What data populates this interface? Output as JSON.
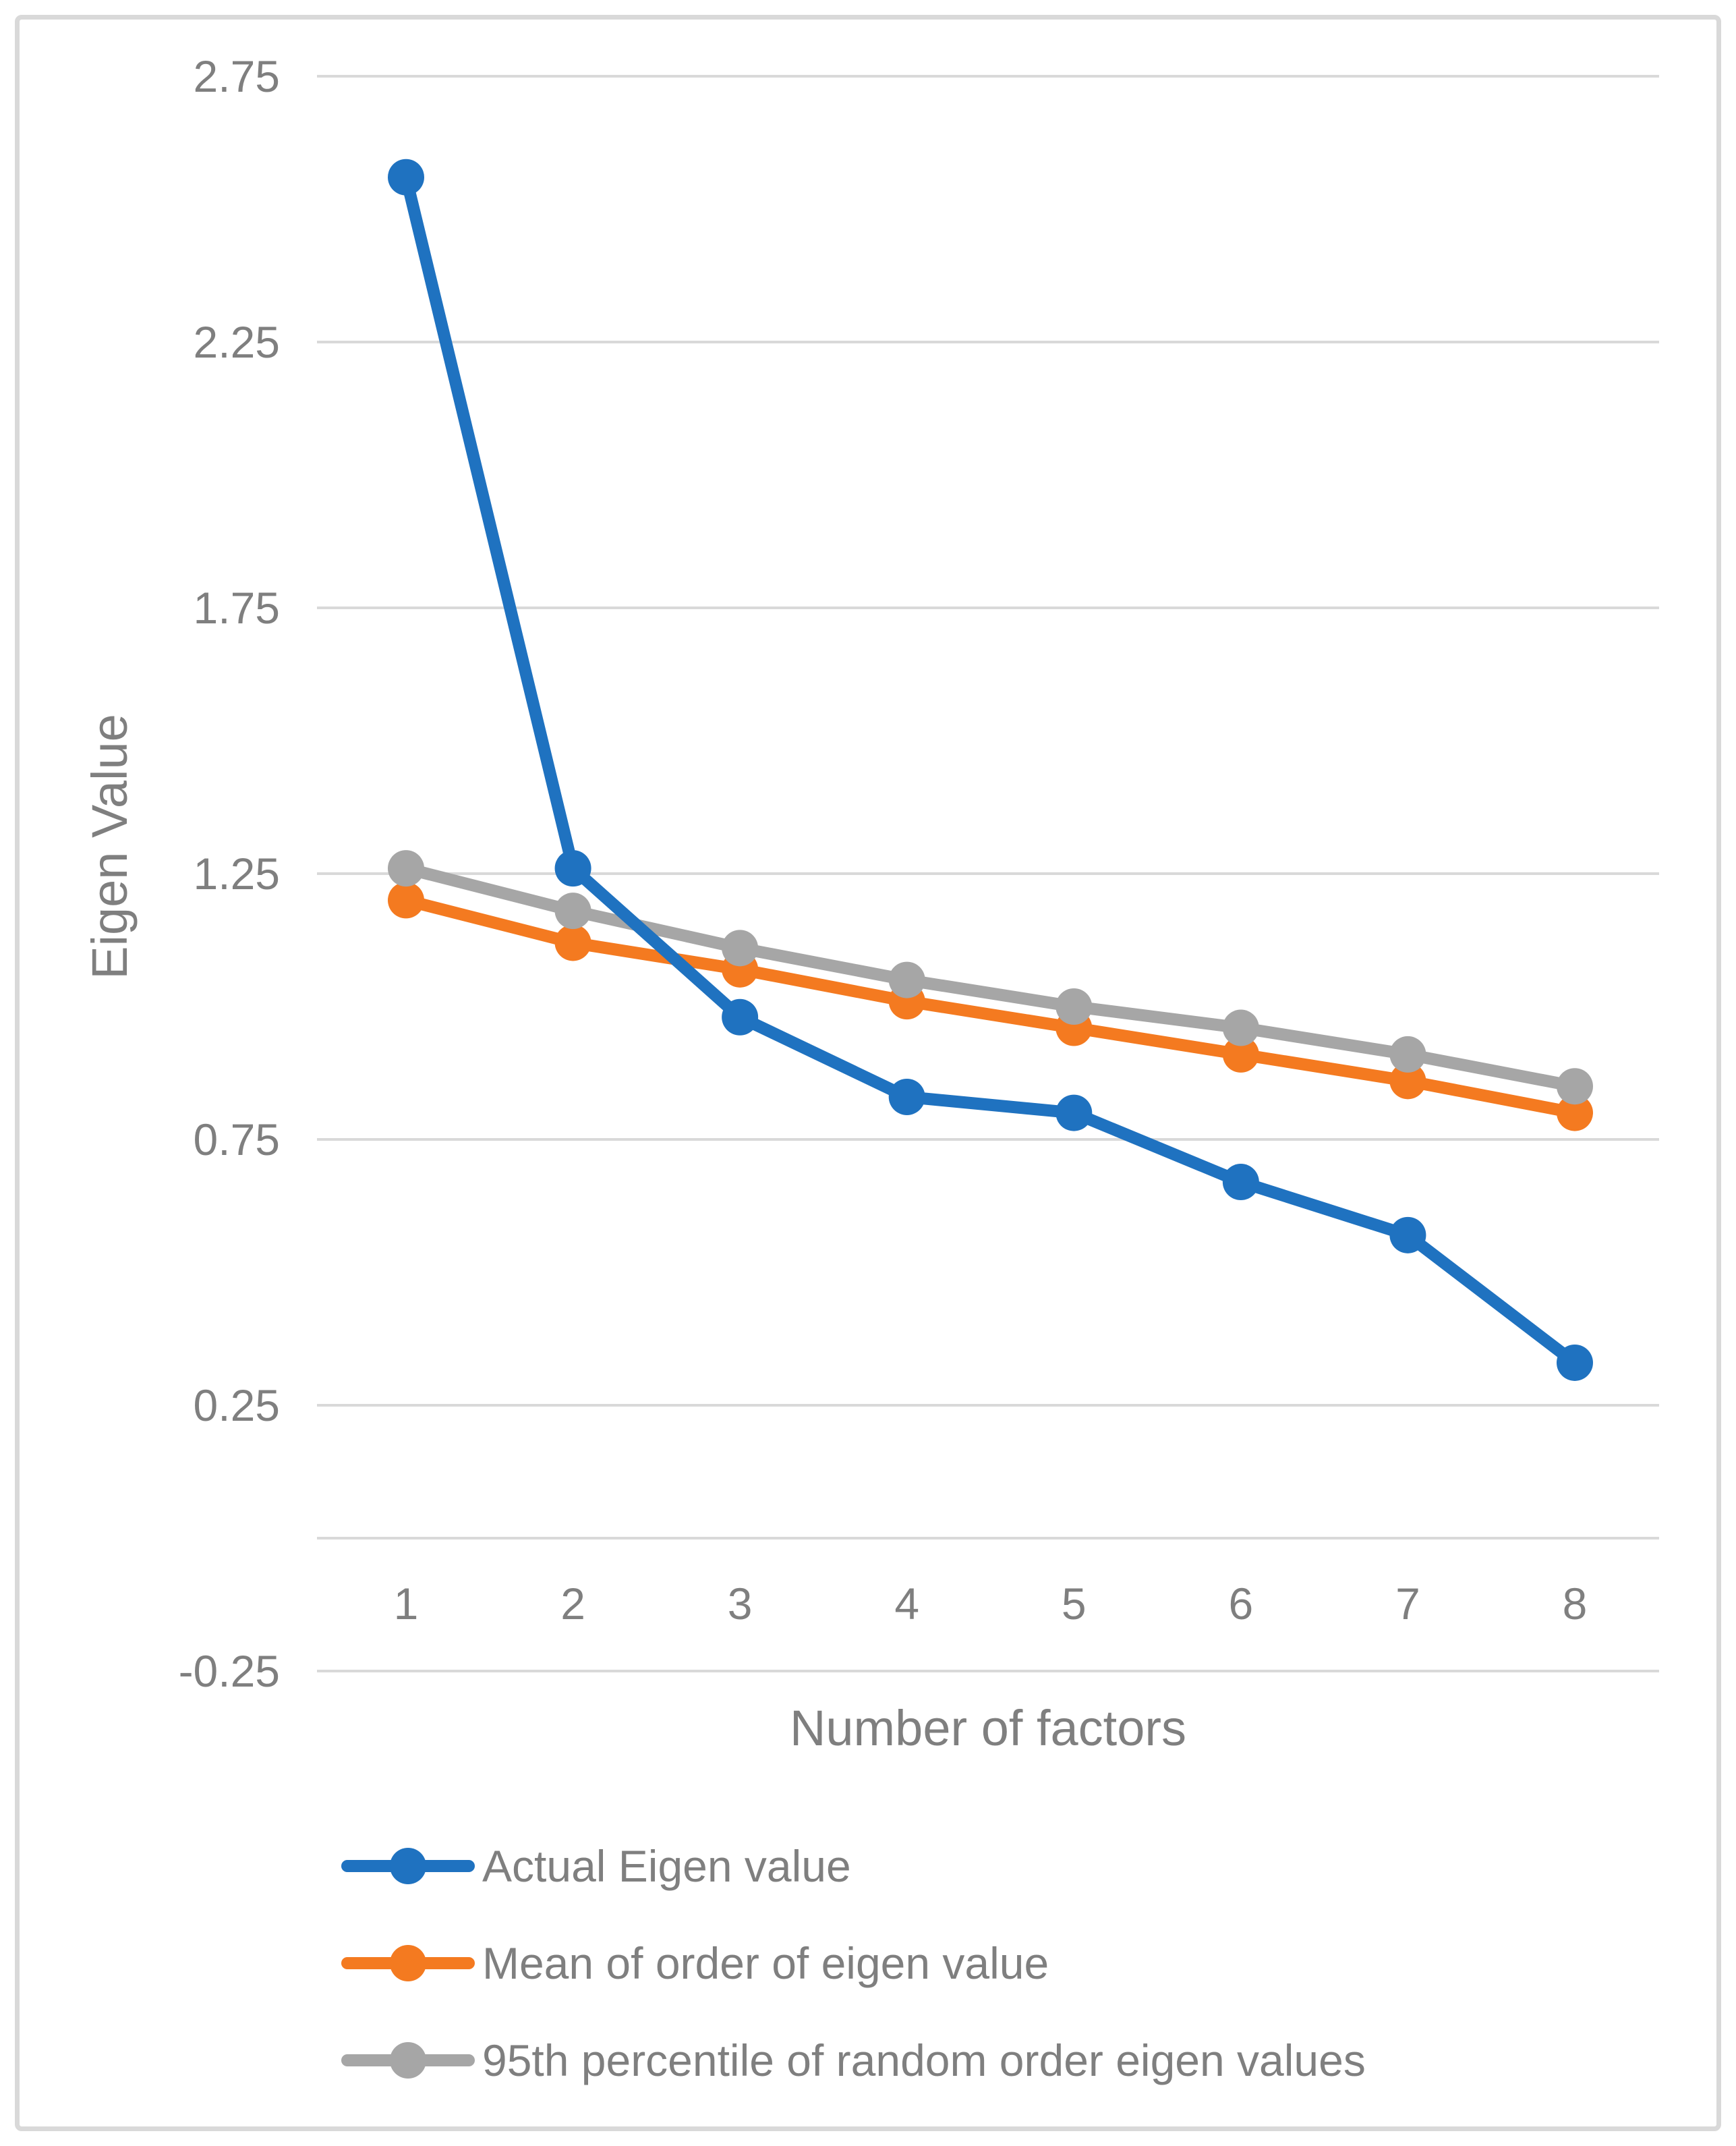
{
  "colors": {
    "grid": "#D9D9D9",
    "frame_border": "#D9D9D9",
    "text": "#7F7F7F"
  },
  "chart_data": {
    "type": "line",
    "title": "",
    "xlabel": "Number of factors",
    "ylabel": "Eigen Value",
    "x": [
      1,
      2,
      3,
      4,
      5,
      6,
      7,
      8
    ],
    "x_tick_labels": [
      "1",
      "2",
      "3",
      "4",
      "5",
      "6",
      "7",
      "8"
    ],
    "y_tick_labels": [
      "2.75",
      "2.25",
      "1.75",
      "1.25",
      "0.75",
      "0.25",
      "-0.25"
    ],
    "ylim": [
      -0.25,
      2.75
    ],
    "grid": "horizontal",
    "zero_axis_line": true,
    "legend_position": "bottom-left",
    "marker": "circle",
    "series": [
      {
        "name": "Actual Eigen value",
        "color": "#1F72C0",
        "values": [
          2.56,
          1.26,
          0.98,
          0.83,
          0.8,
          0.67,
          0.57,
          0.33
        ]
      },
      {
        "name": "Mean of order of eigen value",
        "color": "#F47A20",
        "values": [
          1.2,
          1.12,
          1.07,
          1.01,
          0.96,
          0.91,
          0.86,
          0.8
        ]
      },
      {
        "name": "95th percentile of random order eigen values",
        "color": "#A6A6A6",
        "values": [
          1.26,
          1.18,
          1.11,
          1.05,
          1.0,
          0.96,
          0.91,
          0.85
        ]
      }
    ]
  }
}
